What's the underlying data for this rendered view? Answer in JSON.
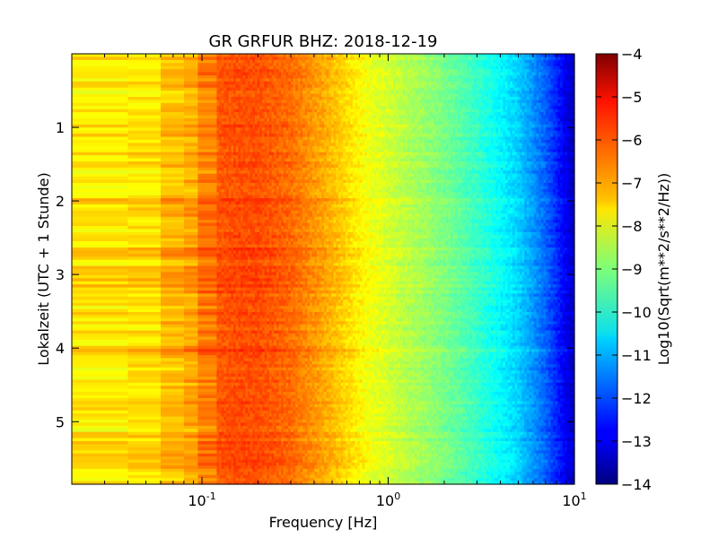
{
  "chart_data": {
    "type": "heatmap",
    "title": "GR GRFUR BHZ: 2018-12-19",
    "xlabel": "Frequency [Hz]",
    "ylabel": "Lokalzeit (UTC + 1 Stunde)",
    "x_scale": "log",
    "xlim": [
      0.02,
      10
    ],
    "ylim": [
      0,
      5.85
    ],
    "y_inverted": true,
    "x_ticks": [
      {
        "value": 0.1,
        "base": "10",
        "exp": "-1"
      },
      {
        "value": 1,
        "base": "10",
        "exp": "0"
      },
      {
        "value": 10,
        "base": "10",
        "exp": "1"
      }
    ],
    "y_ticks": [
      {
        "value": 1,
        "label": "1"
      },
      {
        "value": 2,
        "label": "2"
      },
      {
        "value": 3,
        "label": "3"
      },
      {
        "value": 4,
        "label": "4"
      },
      {
        "value": 5,
        "label": "5"
      }
    ],
    "colorbar": {
      "label": "Log10(Sqrt(m**2/s**2/Hz))",
      "range": [
        -14,
        -4
      ],
      "colormap": "jet",
      "ticks": [
        -4,
        -5,
        -6,
        -7,
        -8,
        -9,
        -10,
        -11,
        -12,
        -13,
        -14
      ]
    },
    "freq_bands": [
      {
        "f": 0.02,
        "value": -7.4
      },
      {
        "f": 0.04,
        "value": -7.7
      },
      {
        "f": 0.06,
        "value": -7.2
      },
      {
        "f": 0.08,
        "value": -7.0
      },
      {
        "f": 0.095,
        "value": -6.8
      },
      {
        "f": 0.12,
        "value": -6.1
      },
      {
        "f": 0.15,
        "value": -6.0
      },
      {
        "f": 0.2,
        "value": -6.0
      },
      {
        "f": 0.3,
        "value": -6.3
      },
      {
        "f": 0.45,
        "value": -6.9
      },
      {
        "f": 0.6,
        "value": -7.4
      },
      {
        "f": 0.8,
        "value": -7.9
      },
      {
        "f": 1.2,
        "value": -8.4
      },
      {
        "f": 1.8,
        "value": -8.9
      },
      {
        "f": 2.5,
        "value": -9.4
      },
      {
        "f": 3.5,
        "value": -10.0
      },
      {
        "f": 5,
        "value": -10.7
      },
      {
        "f": 7,
        "value": -11.8
      },
      {
        "f": 10,
        "value": -13.4
      }
    ],
    "time_events": [
      {
        "t_start": 2.65,
        "t_end": 2.75,
        "delta": 0.6
      },
      {
        "t_start": 2.9,
        "t_end": 3.2,
        "delta": 0.3
      },
      {
        "t_start": 3.95,
        "t_end": 4.15,
        "delta": 0.5
      },
      {
        "t_start": 1.95,
        "t_end": 2.05,
        "delta": 0.3
      }
    ]
  }
}
